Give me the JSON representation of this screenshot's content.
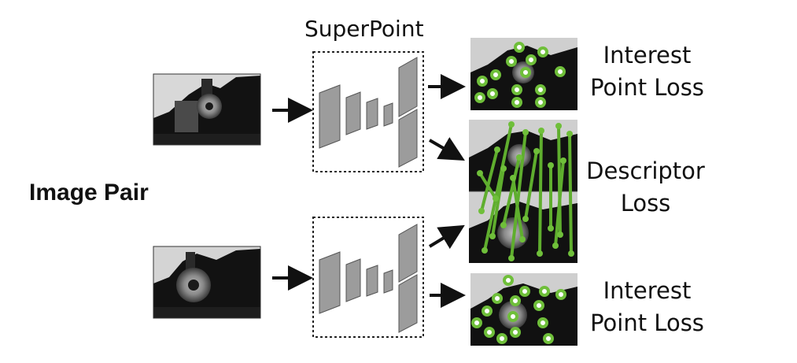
{
  "labels": {
    "superpoint": "SuperPoint",
    "image_pair": "Image Pair",
    "interest_loss_top": [
      "Interest",
      "Point Loss"
    ],
    "descriptor_loss": [
      "Descriptor",
      "Loss"
    ],
    "interest_loss_bottom": [
      "Interest",
      "Point Loss"
    ]
  },
  "colors": {
    "arrow": "#111111",
    "block_fill": "#9c9c9c",
    "block_stroke": "#555555",
    "keypoint": "#6fbf3a",
    "keypoint_center": "#ffffff",
    "match_line": "#5fae2e",
    "photo_dark": "#0e0e0e",
    "photo_mid": "#7a7a7a"
  },
  "icons": {
    "input_images": "grayscale-train-photo",
    "output_images": "keypoint-overlay-photo"
  }
}
